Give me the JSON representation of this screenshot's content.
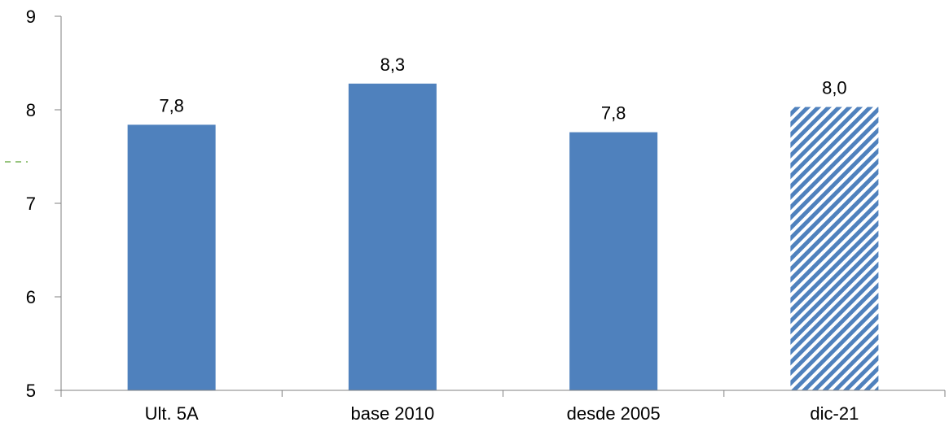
{
  "chart_data": {
    "type": "bar",
    "categories": [
      "Ult. 5A",
      "base 2010",
      "desde 2005",
      "dic-21"
    ],
    "values": [
      7.84,
      8.28,
      7.76,
      8.03
    ],
    "data_labels": [
      "7,8",
      "8,3",
      "7,8",
      "8,0"
    ],
    "ylim": [
      5,
      9
    ],
    "yticks": [
      5,
      6,
      7,
      8,
      9
    ],
    "ytick_labels": [
      "5",
      "6",
      "7",
      "8",
      "9"
    ],
    "grid": false,
    "legend": "none",
    "bar_styles": [
      "solid",
      "solid",
      "solid",
      "hatched"
    ],
    "colors": {
      "bar": "#4F81BD",
      "hatch_background": "#ffffff",
      "axis": "#808080",
      "text": "#000000",
      "marker": "#77B255"
    }
  }
}
